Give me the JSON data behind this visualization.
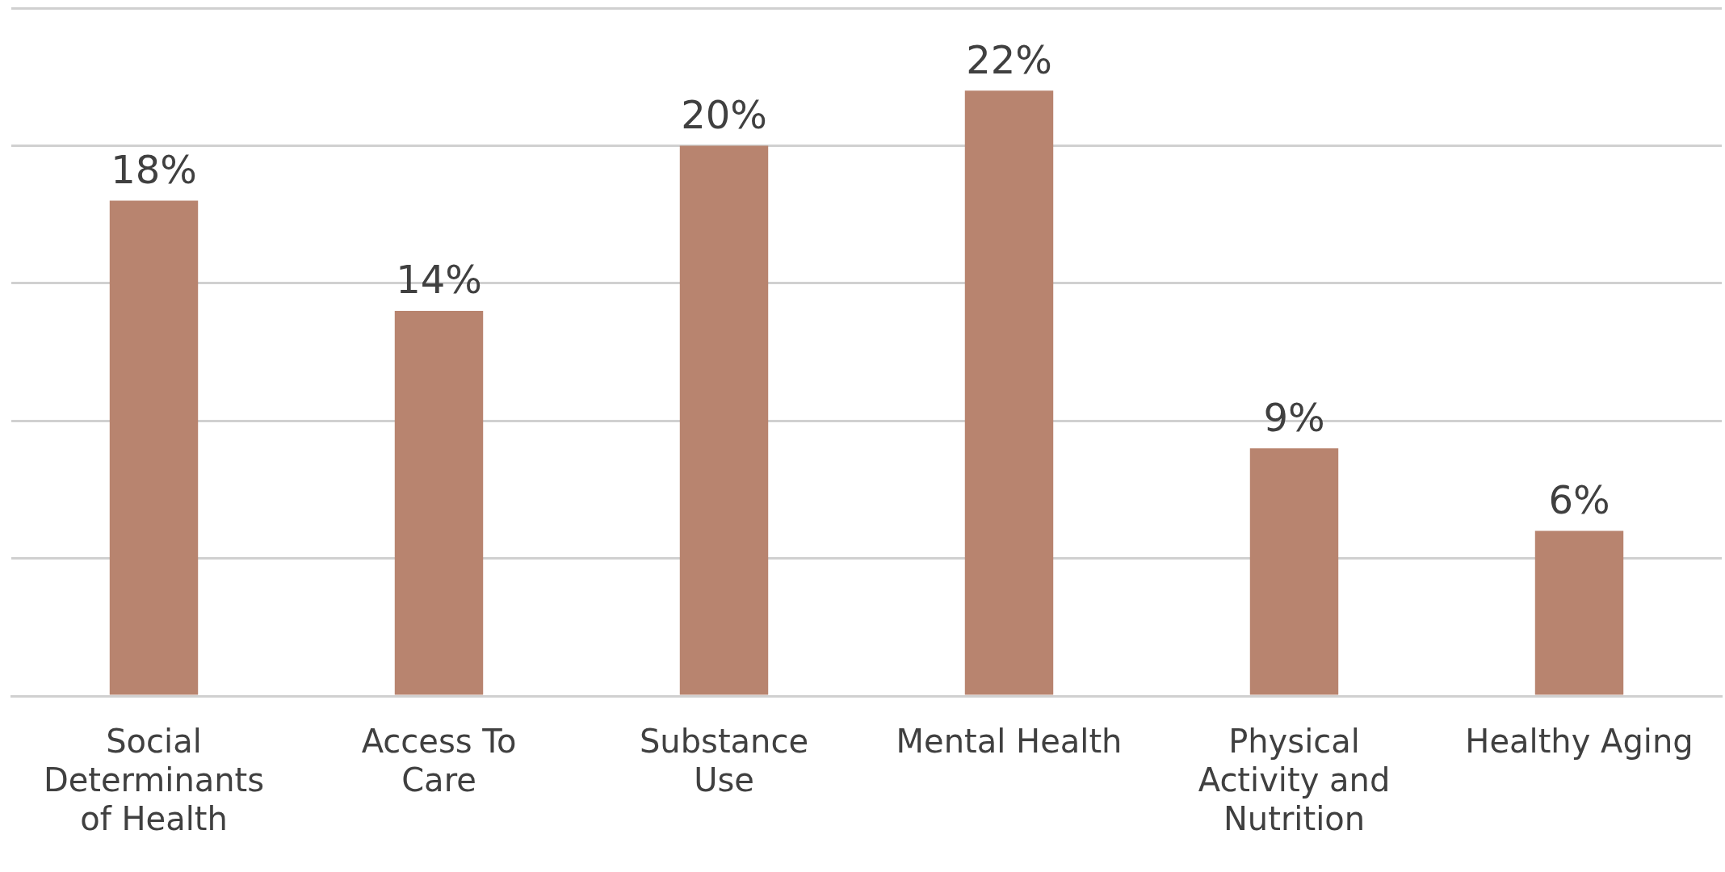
{
  "chart_data": {
    "type": "bar",
    "categories": [
      "Social Determinants of Health",
      "Access To Care",
      "Substance Use",
      "Mental Health",
      "Physical Activity and Nutrition",
      "Healthy Aging"
    ],
    "values": [
      18,
      14,
      20,
      22,
      9,
      6
    ],
    "color": "#b8846f",
    "value_labels": [
      "18%",
      "14%",
      "20%",
      "22%",
      "9%",
      "6%"
    ],
    "grid": "y",
    "tick_labels": "x"
  }
}
